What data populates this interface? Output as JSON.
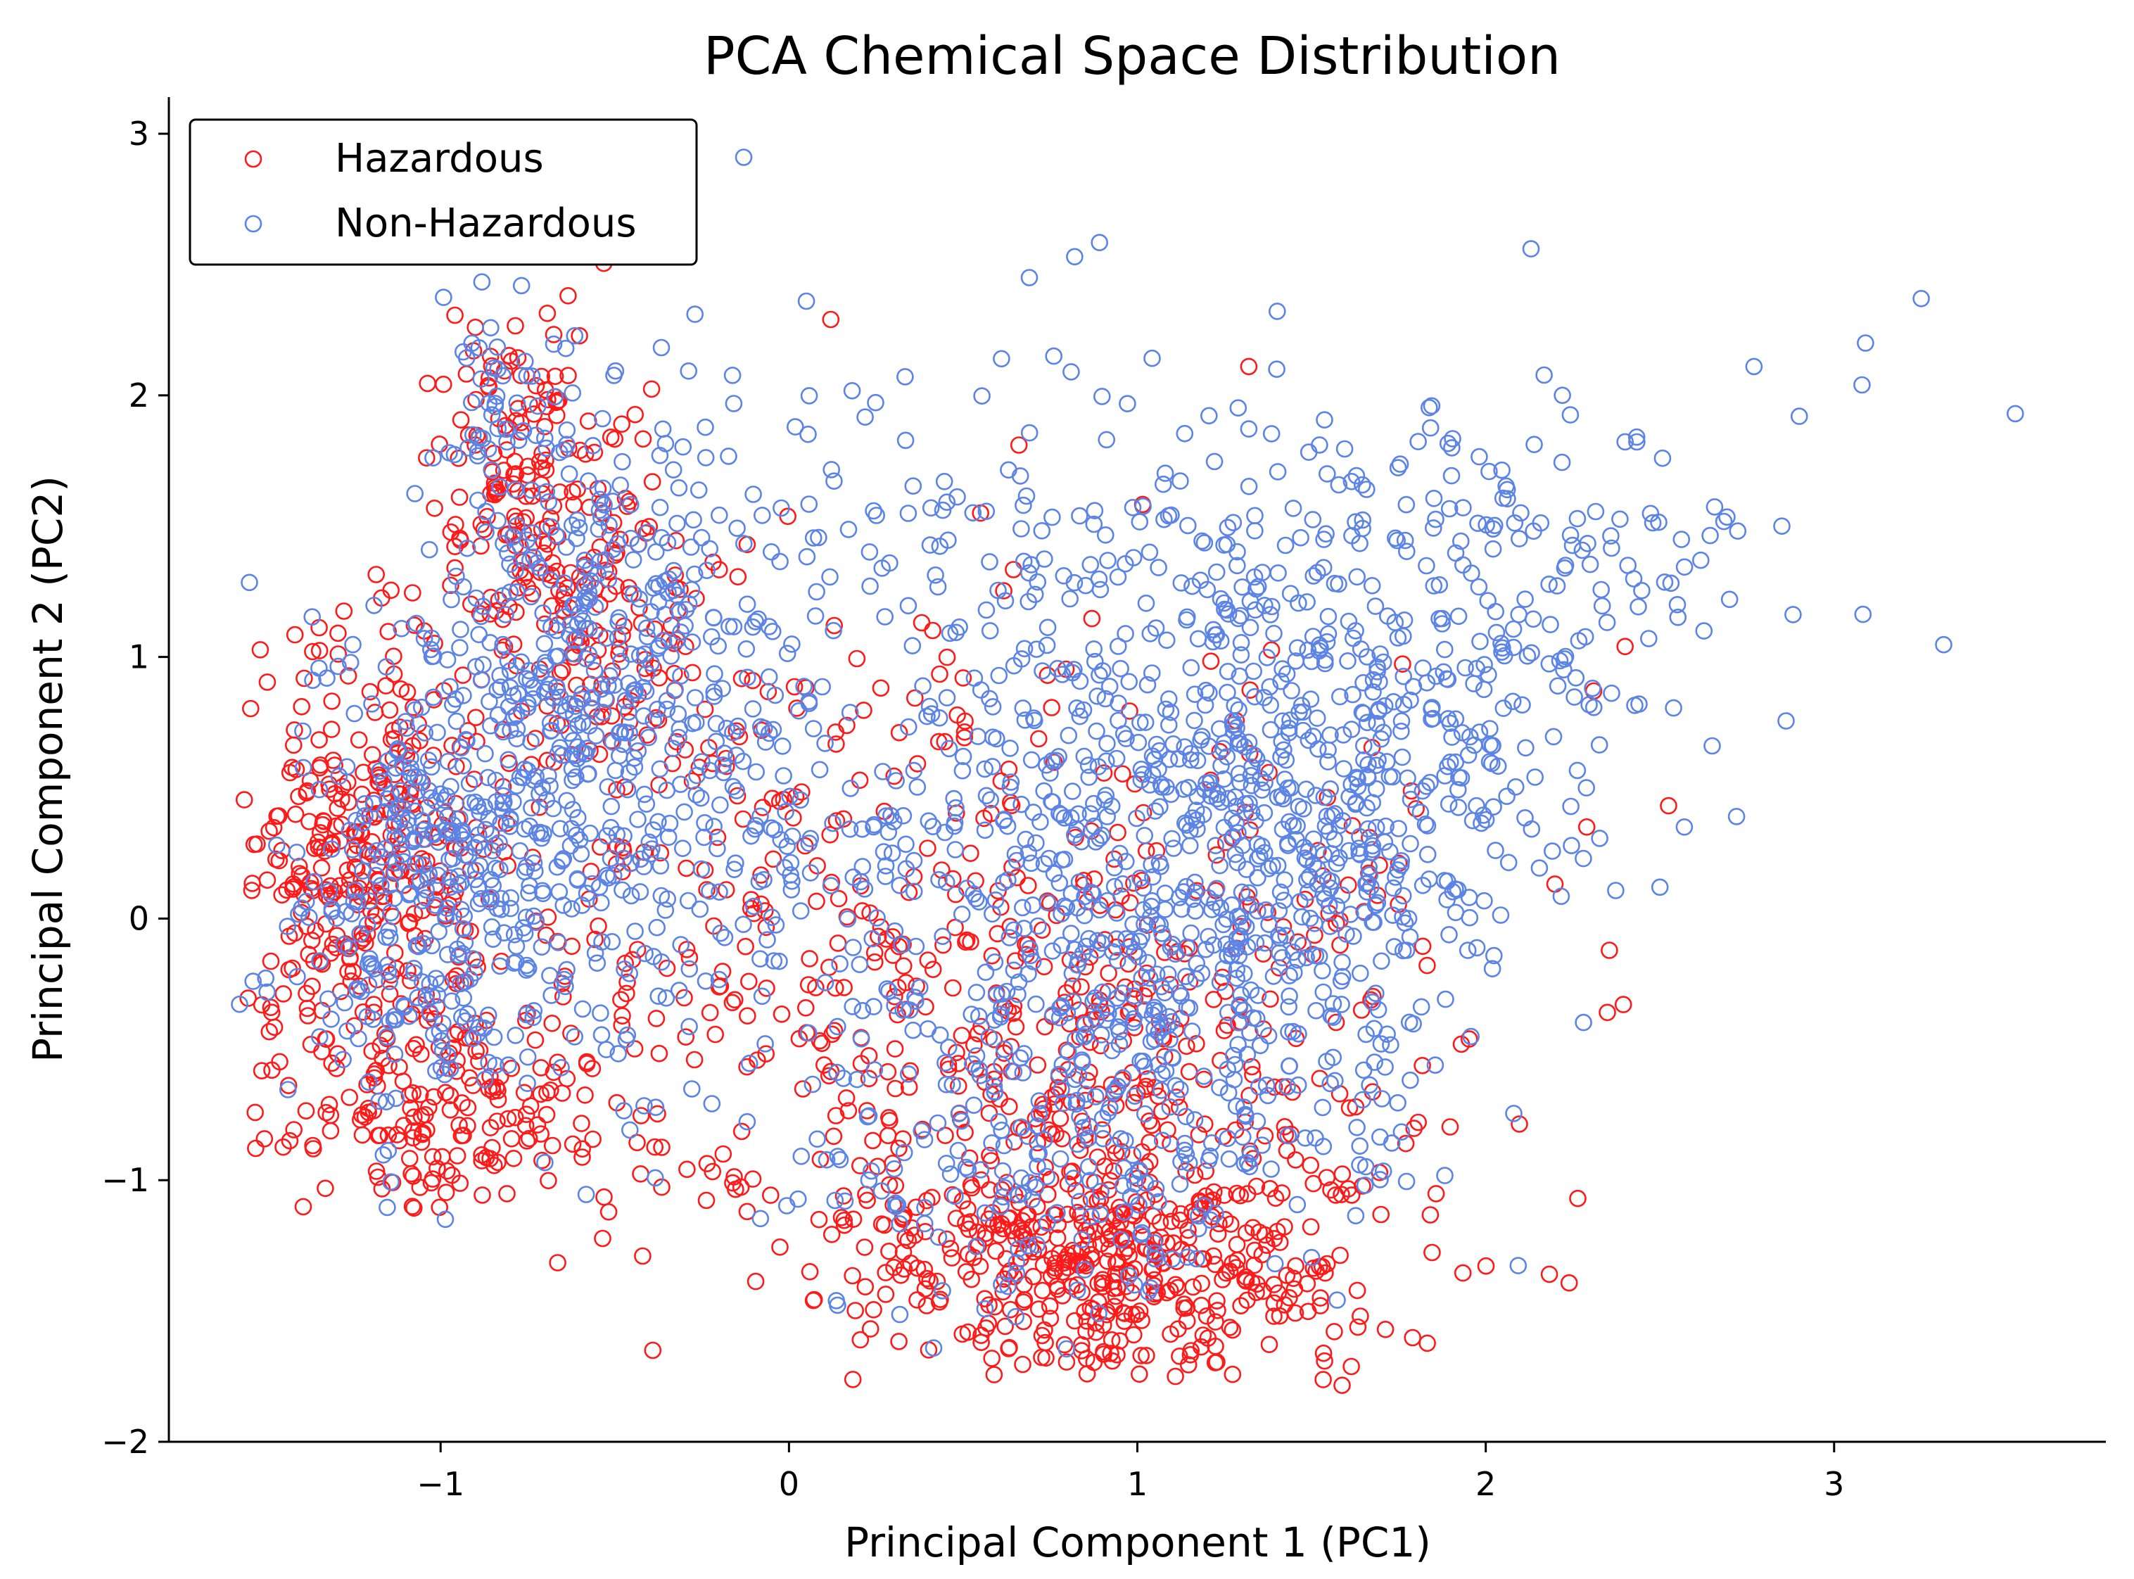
{
  "colors": {
    "hazardous": "#ff1a1a",
    "non_hazardous": "#5b84e6",
    "axis": "#000000"
  },
  "chart_data": {
    "type": "scatter",
    "title": "PCA Chemical Space Distribution",
    "xlabel": "Principal Component 1 (PC1)",
    "ylabel": "Principal Component 2 (PC2)",
    "xlim": [
      -1.78,
      3.78
    ],
    "ylim": [
      -2.0,
      3.14
    ],
    "xticks": [
      {
        "value": -1,
        "label": "−1"
      },
      {
        "value": 0,
        "label": "0"
      },
      {
        "value": 1,
        "label": "1"
      },
      {
        "value": 2,
        "label": "2"
      },
      {
        "value": 3,
        "label": "3"
      }
    ],
    "yticks": [
      {
        "value": -2,
        "label": "−2"
      },
      {
        "value": -1,
        "label": "−1"
      },
      {
        "value": 0,
        "label": "0"
      },
      {
        "value": 1,
        "label": "1"
      },
      {
        "value": 2,
        "label": "2"
      },
      {
        "value": 3,
        "label": "3"
      }
    ],
    "grid": false,
    "legend_position": "top-left",
    "series": [
      {
        "name": "Hazardous",
        "color": "#ff1a1a",
        "clusters": [
          {
            "cx": -1.2,
            "cy": 0.2,
            "sx": 0.18,
            "sy": 0.45,
            "n": 360
          },
          {
            "cx": -0.8,
            "cy": 1.7,
            "sx": 0.12,
            "sy": 0.35,
            "n": 130
          },
          {
            "cx": -0.55,
            "cy": 1.3,
            "sx": 0.15,
            "sy": 0.4,
            "n": 120
          },
          {
            "cx": -0.95,
            "cy": -0.75,
            "sx": 0.25,
            "sy": 0.22,
            "n": 150
          },
          {
            "cx": -0.2,
            "cy": 0.1,
            "sx": 0.35,
            "sy": 0.55,
            "n": 130
          },
          {
            "cx": 0.9,
            "cy": -1.35,
            "sx": 0.4,
            "sy": 0.22,
            "n": 420
          },
          {
            "cx": 0.8,
            "cy": -0.7,
            "sx": 0.5,
            "sy": 0.45,
            "n": 280
          },
          {
            "cx": 1.1,
            "cy": 0.1,
            "sx": 0.45,
            "sy": 0.55,
            "n": 120
          },
          {
            "cx": 0.3,
            "cy": -0.2,
            "sx": 0.6,
            "sy": 0.6,
            "n": 80
          }
        ],
        "points": [
          [
            0.12,
            2.29
          ],
          [
            1.32,
            2.11
          ],
          [
            0.66,
            1.81
          ],
          [
            -0.9,
            2.26
          ],
          [
            2.4,
            1.04
          ],
          [
            2.31,
            0.87
          ],
          [
            2.29,
            0.35
          ],
          [
            1.93,
            -0.48
          ],
          [
            1.64,
            -1.52
          ],
          [
            0.06,
            -1.35
          ],
          [
            -0.12,
            -1.12
          ],
          [
            -0.42,
            -1.29
          ],
          [
            0.13,
            1.12
          ],
          [
            0.55,
            1.55
          ],
          [
            1.8,
            0.42
          ],
          [
            0.62,
            -0.34
          ],
          [
            0.5,
            0.92
          ],
          [
            -0.12,
            1.43
          ],
          [
            -0.48,
            1.89
          ],
          [
            1.55,
            0.02
          ]
        ]
      },
      {
        "name": "Non-Hazardous",
        "color": "#5b84e6",
        "clusters": [
          {
            "cx": -1.0,
            "cy": 0.1,
            "sx": 0.22,
            "sy": 0.5,
            "n": 380
          },
          {
            "cx": -0.6,
            "cy": 1.1,
            "sx": 0.2,
            "sy": 0.45,
            "n": 220
          },
          {
            "cx": -0.85,
            "cy": 2.0,
            "sx": 0.1,
            "sy": 0.25,
            "n": 50
          },
          {
            "cx": -0.4,
            "cy": 0.5,
            "sx": 0.25,
            "sy": 0.5,
            "n": 160
          },
          {
            "cx": 0.2,
            "cy": 0.3,
            "sx": 0.45,
            "sy": 0.7,
            "n": 220
          },
          {
            "cx": 1.1,
            "cy": 0.2,
            "sx": 0.35,
            "sy": 0.6,
            "n": 420
          },
          {
            "cx": 1.5,
            "cy": 0.4,
            "sx": 0.3,
            "sy": 0.55,
            "n": 300
          },
          {
            "cx": 1.9,
            "cy": 0.9,
            "sx": 0.35,
            "sy": 0.45,
            "n": 160
          },
          {
            "cx": 0.9,
            "cy": -0.8,
            "sx": 0.4,
            "sy": 0.4,
            "n": 250
          },
          {
            "cx": 1.0,
            "cy": 1.4,
            "sx": 0.6,
            "sy": 0.35,
            "n": 90
          },
          {
            "cx": 2.3,
            "cy": 1.4,
            "sx": 0.3,
            "sy": 0.3,
            "n": 60
          },
          {
            "cx": 0.5,
            "cy": 1.3,
            "sx": 0.6,
            "sy": 0.45,
            "n": 80
          }
        ],
        "points": [
          [
            -0.13,
            2.91
          ],
          [
            0.82,
            2.53
          ],
          [
            0.69,
            2.45
          ],
          [
            2.13,
            2.56
          ],
          [
            3.25,
            2.37
          ],
          [
            3.09,
            2.2
          ],
          [
            3.08,
            2.04
          ],
          [
            3.52,
            1.93
          ],
          [
            2.9,
            1.92
          ],
          [
            2.77,
            2.11
          ],
          [
            2.85,
            1.5
          ],
          [
            2.7,
            1.22
          ],
          [
            2.55,
            1.2
          ],
          [
            2.65,
            0.66
          ],
          [
            2.72,
            0.39
          ],
          [
            2.5,
            0.12
          ],
          [
            2.44,
            0.82
          ],
          [
            2.57,
            0.35
          ],
          [
            0.61,
            2.14
          ],
          [
            0.76,
            2.15
          ],
          [
            0.05,
            2.36
          ],
          [
            -0.27,
            2.31
          ],
          [
            0.81,
            2.09
          ],
          [
            1.4,
            2.1
          ],
          [
            2.22,
            2.0
          ]
        ]
      }
    ]
  },
  "legend": {
    "items": [
      {
        "label": "Hazardous"
      },
      {
        "label": "Non-Hazardous"
      }
    ]
  }
}
